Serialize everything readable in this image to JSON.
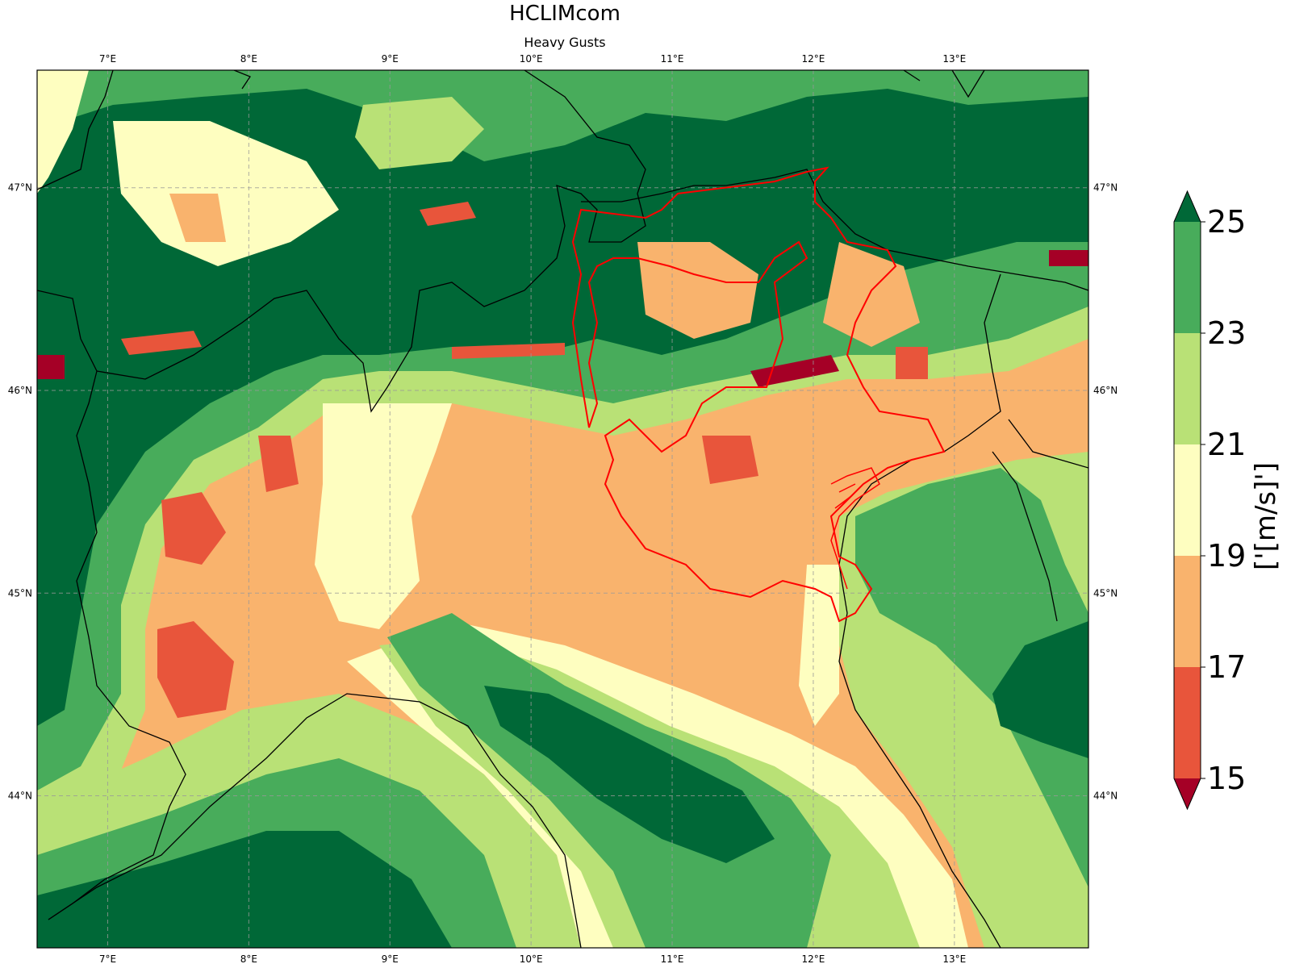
{
  "figure": {
    "title": "HCLIMcom",
    "subtitle": "Heavy Gusts"
  },
  "map": {
    "lon_range": [
      6.5,
      13.95
    ],
    "lat_range": [
      43.25,
      47.58
    ],
    "lon_ticks": [
      "7°E",
      "8°E",
      "9°E",
      "10°E",
      "11°E",
      "12°E",
      "13°E"
    ],
    "lat_ticks": [
      "47°N",
      "46°N",
      "45°N",
      "44°N"
    ],
    "lon_values": [
      7,
      8,
      9,
      10,
      11,
      12,
      13
    ],
    "lat_values": [
      47,
      46,
      45,
      44
    ],
    "gridlines": true,
    "border_color": "#000000",
    "highlight_region_color": "#ff0000"
  },
  "colorbar": {
    "units": "['[m/s]']",
    "tick_labels": [
      "25",
      "23",
      "21",
      "19",
      "17",
      "15"
    ],
    "levels": [
      15,
      17,
      19,
      21,
      23,
      25
    ],
    "extend": "both",
    "colors": {
      "under": "#a50026",
      "15-17": "#e8553b",
      "17-19": "#f9b36d",
      "19-21": "#fefec0",
      "21-23": "#b9e176",
      "23-25": "#48ac5b",
      "over": "#006837"
    }
  }
}
